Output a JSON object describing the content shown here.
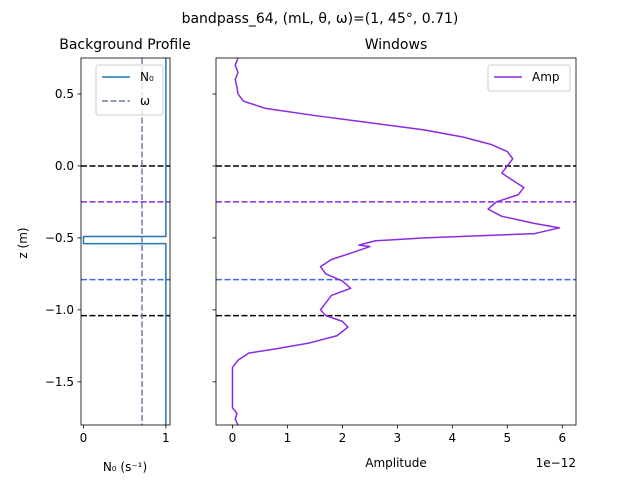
{
  "figure": {
    "suptitle": "bandpass_64, (mL, θ, ω)=(1, 45°, 0.71)"
  },
  "chart_data": [
    {
      "type": "line",
      "title": "Background Profile",
      "xlabel": "N₀ (s⁻¹)",
      "ylabel": "z (m)",
      "xlim": [
        -0.03,
        1.05
      ],
      "ylim": [
        -1.8,
        0.75
      ],
      "xticks": [
        0,
        1
      ],
      "yticks": [
        0.5,
        0.0,
        -0.5,
        -1.0,
        -1.5
      ],
      "ytick_labels": [
        "0.5",
        "0.0",
        "−0.5",
        "−1.0",
        "−1.5"
      ],
      "legend": {
        "placement": "top-right",
        "entries": [
          "N₀",
          "ω"
        ]
      },
      "series": [
        {
          "name": "N₀",
          "color": "#1f77b4",
          "style": "solid",
          "points": [
            [
              1,
              0.75
            ],
            [
              1,
              -0.49
            ],
            [
              0.0,
              -0.49
            ],
            [
              0.0,
              -0.54
            ],
            [
              1,
              -0.54
            ],
            [
              1,
              -1.8
            ]
          ]
        },
        {
          "name": "ω",
          "color": "#6b7fa6",
          "style": "dashed",
          "points": [
            [
              0.71,
              0.75
            ],
            [
              0.71,
              -1.8
            ]
          ]
        }
      ],
      "hlines": [
        {
          "y": 0.0,
          "color": "#000000"
        },
        {
          "y": -0.25,
          "color": "#8a2be2"
        },
        {
          "y": -0.79,
          "color": "#4169e1"
        },
        {
          "y": -1.04,
          "color": "#000000"
        }
      ]
    },
    {
      "type": "line",
      "title": "Windows",
      "xlabel": "Amplitude",
      "x_offset_text": "1e−12",
      "xlim": [
        -0.3,
        6.25
      ],
      "ylim": [
        -1.8,
        0.75
      ],
      "xticks": [
        0,
        1,
        2,
        3,
        4,
        5,
        6
      ],
      "yticks": [
        0.5,
        0.0,
        -0.5,
        -1.0,
        -1.5
      ],
      "legend": {
        "placement": "top-right",
        "entries": [
          "Amp"
        ]
      },
      "series": [
        {
          "name": "Amp",
          "color": "#8a2be2",
          "style": "solid",
          "points": [
            [
              0.1,
              0.75
            ],
            [
              0.05,
              0.7
            ],
            [
              0.1,
              0.65
            ],
            [
              0.05,
              0.6
            ],
            [
              0.08,
              0.55
            ],
            [
              0.1,
              0.5
            ],
            [
              0.2,
              0.45
            ],
            [
              0.6,
              0.4
            ],
            [
              1.5,
              0.35
            ],
            [
              2.5,
              0.3
            ],
            [
              3.5,
              0.25
            ],
            [
              4.2,
              0.2
            ],
            [
              4.7,
              0.15
            ],
            [
              5.0,
              0.1
            ],
            [
              5.1,
              0.05
            ],
            [
              5.0,
              0.0
            ],
            [
              4.9,
              -0.05
            ],
            [
              5.1,
              -0.1
            ],
            [
              5.3,
              -0.15
            ],
            [
              5.2,
              -0.2
            ],
            [
              4.8,
              -0.25
            ],
            [
              4.65,
              -0.3
            ],
            [
              4.9,
              -0.35
            ],
            [
              5.5,
              -0.4
            ],
            [
              5.95,
              -0.43
            ],
            [
              5.5,
              -0.47
            ],
            [
              3.5,
              -0.5
            ],
            [
              2.6,
              -0.52
            ],
            [
              2.3,
              -0.55
            ],
            [
              2.5,
              -0.56
            ],
            [
              2.2,
              -0.6
            ],
            [
              1.8,
              -0.65
            ],
            [
              1.6,
              -0.7
            ],
            [
              1.7,
              -0.75
            ],
            [
              2.0,
              -0.8
            ],
            [
              2.15,
              -0.85
            ],
            [
              1.8,
              -0.9
            ],
            [
              1.7,
              -0.95
            ],
            [
              1.6,
              -1.0
            ],
            [
              1.7,
              -1.04
            ],
            [
              2.0,
              -1.08
            ],
            [
              2.1,
              -1.12
            ],
            [
              1.9,
              -1.18
            ],
            [
              1.4,
              -1.23
            ],
            [
              0.8,
              -1.27
            ],
            [
              0.3,
              -1.3
            ],
            [
              0.1,
              -1.35
            ],
            [
              0.0,
              -1.4
            ],
            [
              0.0,
              -1.5
            ],
            [
              0.0,
              -1.6
            ],
            [
              0.0,
              -1.68
            ],
            [
              0.08,
              -1.72
            ],
            [
              0.05,
              -1.76
            ],
            [
              0.1,
              -1.8
            ]
          ]
        }
      ],
      "hlines": [
        {
          "y": 0.0,
          "color": "#000000"
        },
        {
          "y": -0.25,
          "color": "#8a2be2"
        },
        {
          "y": -0.79,
          "color": "#4169e1"
        },
        {
          "y": -1.04,
          "color": "#000000"
        }
      ]
    }
  ]
}
